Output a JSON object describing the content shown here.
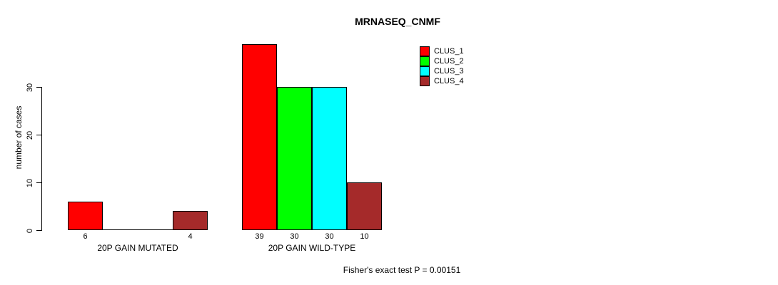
{
  "chart_data": {
    "type": "bar",
    "title": "MRNASEQ_CNMF",
    "ylabel": "number of cases",
    "xlabel": "",
    "yticks": [
      0,
      10,
      20,
      30
    ],
    "ylim": [
      0,
      39
    ],
    "grid": false,
    "legend_position": "top-right",
    "categories": [
      "20P GAIN MUTATED",
      "20P GAIN WILD-TYPE"
    ],
    "series": [
      {
        "name": "CLUS_1",
        "color": "#ff0000",
        "values": [
          6,
          39
        ]
      },
      {
        "name": "CLUS_2",
        "color": "#00ff00",
        "values": [
          0,
          30
        ]
      },
      {
        "name": "CLUS_3",
        "color": "#00ffff",
        "values": [
          0,
          30
        ]
      },
      {
        "name": "CLUS_4",
        "color": "#a52a2a",
        "values": [
          4,
          10
        ]
      }
    ],
    "bar_labels": [
      [
        "6",
        "",
        "",
        "4"
      ],
      [
        "39",
        "30",
        "30",
        "10"
      ]
    ],
    "annotation": "Fisher's exact test P = 0.00151",
    "outline_color": "#000000"
  }
}
